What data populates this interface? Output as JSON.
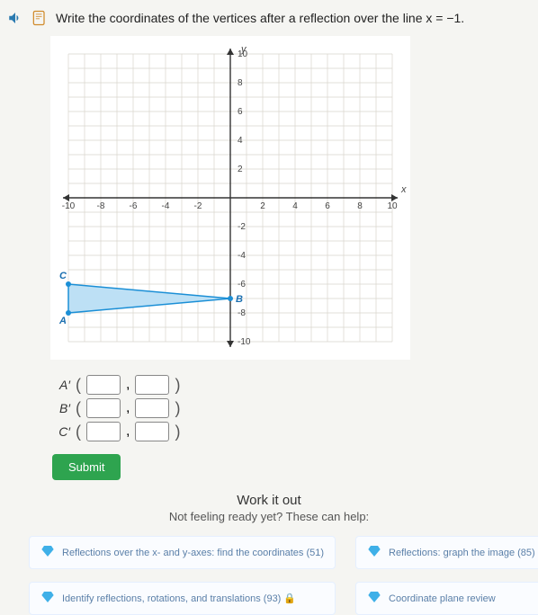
{
  "prompt": "Write the coordinates of the vertices after a reflection over the line x = −1.",
  "graph": {
    "xlim": [
      -10,
      10
    ],
    "ylim": [
      -10,
      10
    ],
    "tick_step": 2,
    "x_ticks": [
      -10,
      -8,
      -6,
      -4,
      -2,
      2,
      4,
      6,
      8,
      10
    ],
    "y_ticks": [
      10,
      8,
      6,
      4,
      2,
      -2,
      -4,
      -6,
      -8,
      -10
    ],
    "axis_label_x": "x",
    "axis_label_y": "y",
    "y_axis_top_label": "10",
    "grid_color": "#d8d4cc",
    "axis_color": "#333333",
    "point_color": "#1b8fd6",
    "shape_fill": "#bde0f5",
    "shape_stroke": "#1b8fd6",
    "label_color": "#1b6fb0",
    "points": {
      "C": {
        "x": -10,
        "y": -6
      },
      "A": {
        "x": -10,
        "y": -8
      },
      "B": {
        "x": 0,
        "y": -7
      }
    }
  },
  "answers": [
    {
      "label": "A′",
      "x": "",
      "y": ""
    },
    {
      "label": "B′",
      "x": "",
      "y": ""
    },
    {
      "label": "C′",
      "x": "",
      "y": ""
    }
  ],
  "submit_label": "Submit",
  "workout": {
    "title": "Work it out",
    "subtitle": "Not feeling ready yet? These can help:"
  },
  "help": [
    {
      "text": "Reflections over the x- and y-axes: find the coordinates (51)"
    },
    {
      "text": "Identify reflections, rotations, and translations (93) 🔒"
    },
    {
      "text": "Reflections: graph the image (85) 🔒"
    },
    {
      "text": "Coordinate plane review"
    }
  ],
  "gem_color": "#3fb0e8"
}
